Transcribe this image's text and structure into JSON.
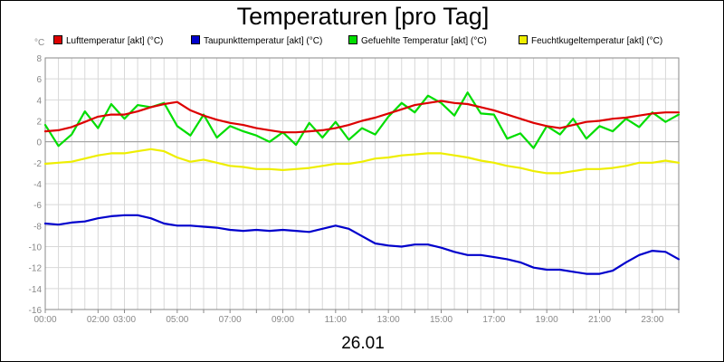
{
  "chart_data": {
    "type": "line",
    "title": "Temperaturen [pro Tag]",
    "unit_label": "°C",
    "date_label": "26.01",
    "ylim": [
      -16,
      8
    ],
    "y_ticks": [
      8,
      6,
      4,
      2,
      0,
      -2,
      -4,
      -6,
      -8,
      -10,
      -12,
      -14,
      -16
    ],
    "y_tick_labels": [
      "8",
      "6",
      "4",
      "2",
      "0",
      "-2",
      "-4",
      "-6",
      "-8",
      "-10",
      "-12",
      "-14",
      "-16"
    ],
    "xlim": [
      0,
      24
    ],
    "x_ticks": [
      0,
      2,
      3,
      5,
      7,
      9,
      11,
      13,
      15,
      17,
      19,
      21,
      23
    ],
    "x_tick_labels": [
      "00:00",
      "02:00",
      "03:00",
      "05:00",
      "07:00",
      "09:00",
      "11:00",
      "13:00",
      "15:00",
      "17:00",
      "19:00",
      "21:00",
      "23:00"
    ],
    "x": [
      0,
      0.5,
      1,
      1.5,
      2,
      2.5,
      3,
      3.5,
      4,
      4.5,
      5,
      5.5,
      6,
      6.5,
      7,
      7.5,
      8,
      8.5,
      9,
      9.5,
      10,
      10.5,
      11,
      11.5,
      12,
      12.5,
      13,
      13.5,
      14,
      14.5,
      15,
      15.5,
      16,
      16.5,
      17,
      17.5,
      18,
      18.5,
      19,
      19.5,
      20,
      20.5,
      21,
      21.5,
      22,
      22.5,
      23,
      23.5,
      24
    ],
    "series": [
      {
        "name": "Lufttemperatur [akt] (°C)",
        "color": "#dd0000",
        "values": [
          1.0,
          1.1,
          1.4,
          1.9,
          2.4,
          2.6,
          2.6,
          2.9,
          3.3,
          3.6,
          3.8,
          3.0,
          2.5,
          2.1,
          1.8,
          1.6,
          1.3,
          1.1,
          0.9,
          0.9,
          1.0,
          1.1,
          1.3,
          1.6,
          2.0,
          2.3,
          2.7,
          3.1,
          3.5,
          3.7,
          3.9,
          3.7,
          3.6,
          3.3,
          3.0,
          2.6,
          2.2,
          1.8,
          1.5,
          1.3,
          1.6,
          1.9,
          2.0,
          2.2,
          2.3,
          2.5,
          2.7,
          2.8,
          2.8
        ]
      },
      {
        "name": "Taupunkttemperatur [akt] (°C)",
        "color": "#0000cc",
        "values": [
          -7.8,
          -7.9,
          -7.7,
          -7.6,
          -7.3,
          -7.1,
          -7.0,
          -7.0,
          -7.3,
          -7.8,
          -8.0,
          -8.0,
          -8.1,
          -8.2,
          -8.4,
          -8.5,
          -8.4,
          -8.5,
          -8.4,
          -8.5,
          -8.6,
          -8.3,
          -8.0,
          -8.3,
          -9.0,
          -9.7,
          -9.9,
          -10.0,
          -9.8,
          -9.8,
          -10.1,
          -10.5,
          -10.8,
          -10.8,
          -11.0,
          -11.2,
          -11.5,
          -12.0,
          -12.2,
          -12.2,
          -12.4,
          -12.6,
          -12.6,
          -12.3,
          -11.5,
          -10.8,
          -10.4,
          -10.5,
          -11.2
        ]
      },
      {
        "name": "Gefuehlte Temperatur [akt] (°C)",
        "color": "#00dd00",
        "values": [
          1.6,
          -0.4,
          0.7,
          2.9,
          1.3,
          3.6,
          2.2,
          3.5,
          3.3,
          3.7,
          1.5,
          0.6,
          2.6,
          0.4,
          1.5,
          1.0,
          0.6,
          0.0,
          0.9,
          -0.3,
          1.8,
          0.4,
          1.9,
          0.2,
          1.3,
          0.7,
          2.4,
          3.7,
          2.8,
          4.4,
          3.7,
          2.5,
          4.7,
          2.7,
          2.6,
          0.3,
          0.8,
          -0.6,
          1.5,
          0.7,
          2.2,
          0.3,
          1.5,
          1.0,
          2.2,
          1.4,
          2.8,
          1.9,
          2.6
        ]
      },
      {
        "name": "Feuchtkugeltemperatur [akt] (°C)",
        "color": "#eeee00",
        "values": [
          -2.1,
          -2.0,
          -1.9,
          -1.6,
          -1.3,
          -1.1,
          -1.1,
          -0.9,
          -0.7,
          -0.9,
          -1.5,
          -1.9,
          -1.7,
          -2.0,
          -2.3,
          -2.4,
          -2.6,
          -2.6,
          -2.7,
          -2.6,
          -2.5,
          -2.3,
          -2.1,
          -2.1,
          -1.9,
          -1.6,
          -1.5,
          -1.3,
          -1.2,
          -1.1,
          -1.1,
          -1.3,
          -1.5,
          -1.8,
          -2.0,
          -2.3,
          -2.5,
          -2.8,
          -3.0,
          -3.0,
          -2.8,
          -2.6,
          -2.6,
          -2.5,
          -2.3,
          -2.0,
          -2.0,
          -1.8,
          -2.0
        ]
      }
    ],
    "legend_position": "top",
    "grid": true
  }
}
